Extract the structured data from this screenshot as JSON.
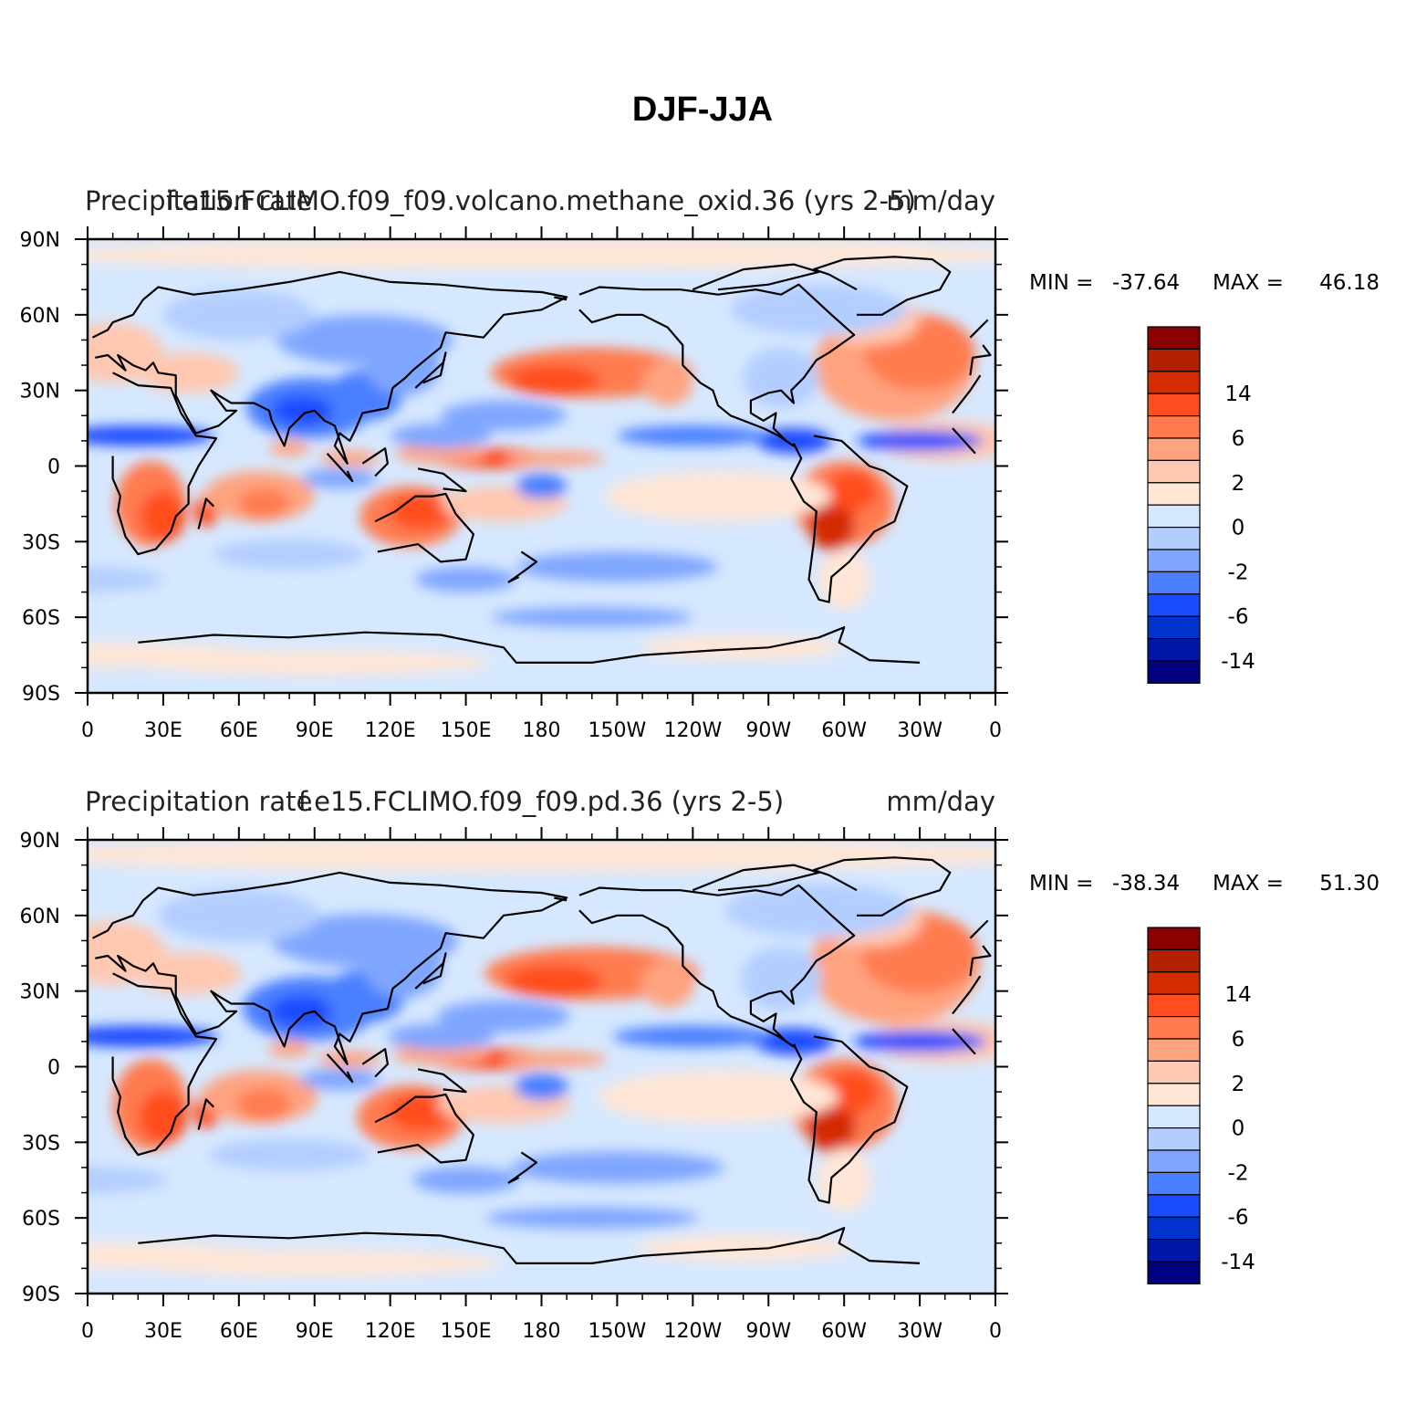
{
  "figure": {
    "title": "DJF-JJA"
  },
  "colors": {
    "levels": [
      "#000080",
      "#0016a8",
      "#0033cc",
      "#1a4cff",
      "#4a7fff",
      "#7fa6ff",
      "#b3cdff",
      "#d6e8ff",
      "#ffe6d6",
      "#ffc8b0",
      "#ffa37f",
      "#ff7b4f",
      "#ff4d1f",
      "#d42b00",
      "#b32000",
      "#8b0000"
    ],
    "coast": "#000000",
    "ocean_base": "#d6e8ff"
  },
  "axes": {
    "lon_labels": [
      "0",
      "30E",
      "60E",
      "90E",
      "120E",
      "150E",
      "180",
      "150W",
      "120W",
      "90W",
      "60W",
      "30W",
      "0"
    ],
    "lat_labels": [
      "90N",
      "60N",
      "30N",
      "0",
      "30S",
      "60S",
      "90S"
    ],
    "lon_range": [
      0,
      360
    ],
    "lat_range": [
      -90,
      90
    ]
  },
  "colorbar": {
    "labels": [
      "14",
      "6",
      "2",
      "0",
      "-2",
      "-6",
      "-14"
    ]
  },
  "panels": [
    {
      "left_title": "Precipitation rate",
      "center_title": "f.e15.FCLIMO.f09_f09.volcano.methane_oxid.36 (yrs 2-5)",
      "right_title": "mm/day",
      "stats": {
        "min_label": "MIN =",
        "min": "-37.64",
        "max_label": "MAX =",
        "max": "46.18"
      }
    },
    {
      "left_title": "Precipitation rate",
      "center_title": "f.e15.FCLIMO.f09_f09.pd.36 (yrs 2-5)",
      "right_title": "mm/day",
      "stats": {
        "min_label": "MIN =",
        "min": "-38.34",
        "max_label": "MAX =",
        "max": "51.30"
      }
    }
  ]
}
